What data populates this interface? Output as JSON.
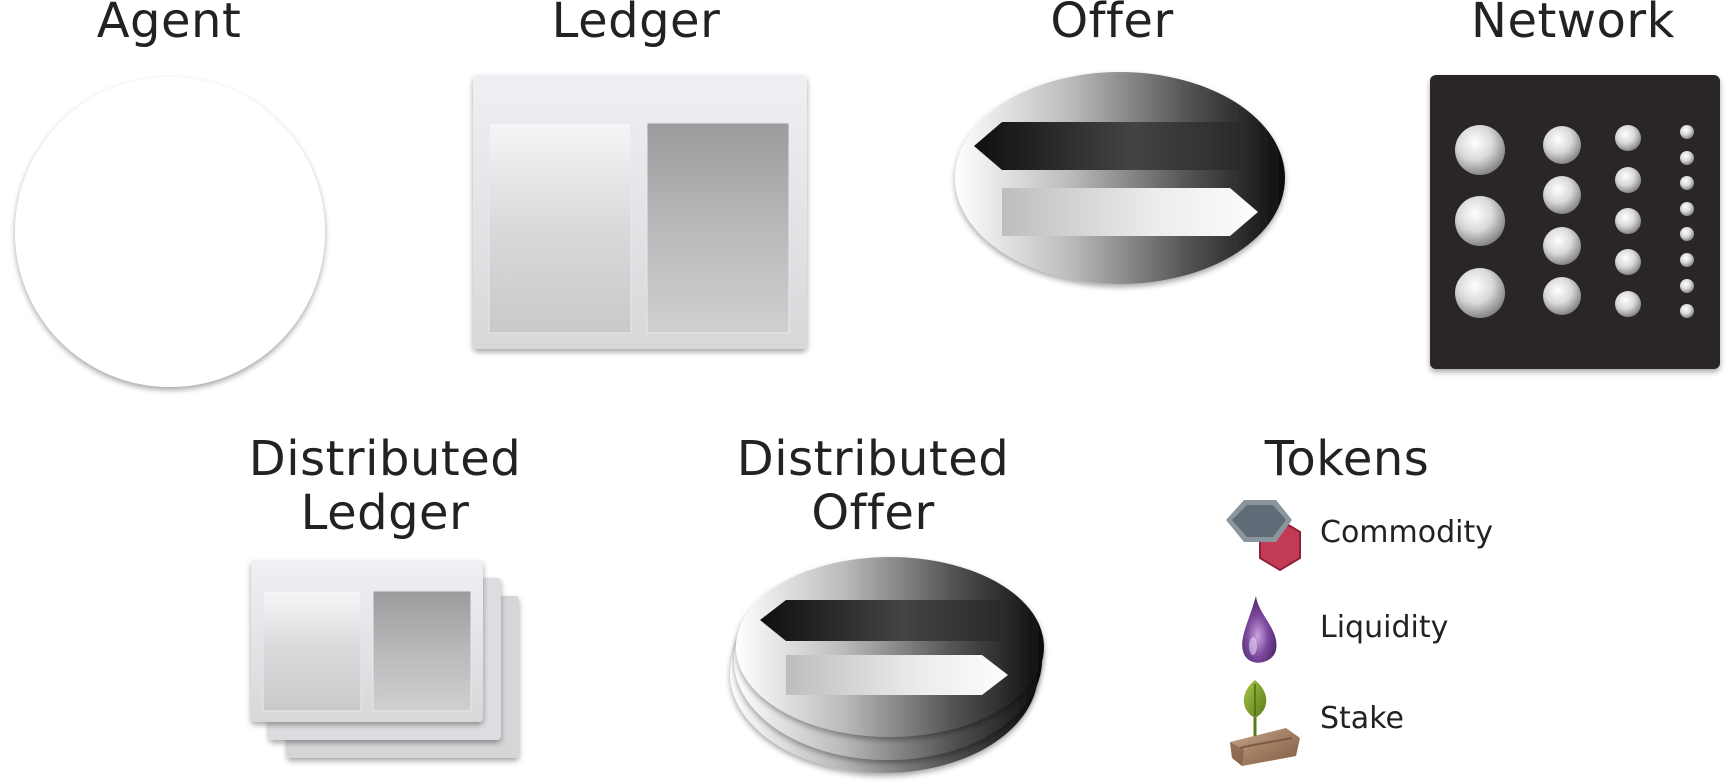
{
  "titles": {
    "agent": "Agent",
    "ledger": "Ledger",
    "offer": "Offer",
    "network": "Network",
    "distributed_ledger_line1": "Distributed",
    "distributed_ledger_line2": "Ledger",
    "distributed_offer_line1": "Distributed",
    "distributed_offer_line2": "Offer",
    "tokens": "Tokens"
  },
  "tokens": {
    "items": [
      {
        "label": "Commodity",
        "icon": "hexagon-pair-icon"
      },
      {
        "label": "Liquidity",
        "icon": "droplet-icon"
      },
      {
        "label": "Stake",
        "icon": "sprout-on-wood-icon"
      }
    ]
  },
  "colors": {
    "commodity_gray": "#5f6b76",
    "commodity_red": "#c33a54",
    "liquidity_purple": "#6a3c86",
    "stake_leaf": "#7a9a2a",
    "stake_wood": "#a7856a",
    "network_bg": "#2a2727"
  }
}
